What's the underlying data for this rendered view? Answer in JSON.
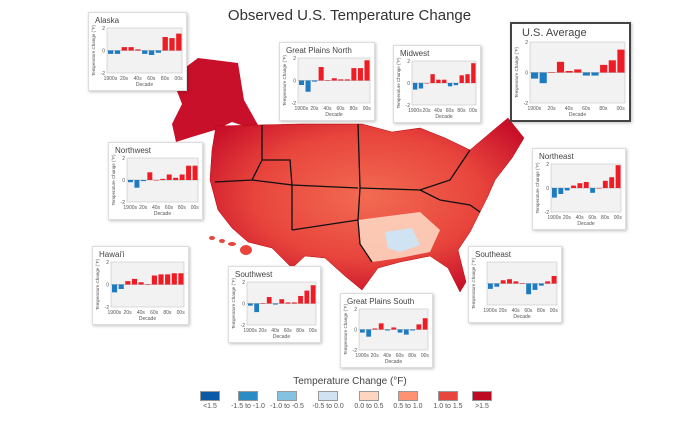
{
  "title": "Observed U.S. Temperature Change",
  "chart_data": {
    "type": "bar",
    "categories": [
      "1900s",
      "1910s",
      "1920s",
      "1930s",
      "1940s",
      "1950s",
      "1960s",
      "1970s",
      "1980s",
      "1990s",
      "2000s"
    ],
    "xtick_labels": [
      "1900s",
      "20s",
      "40s",
      "60s",
      "80s",
      "00s"
    ],
    "ylim": [
      -2,
      2
    ],
    "yticks": [
      "2",
      "0",
      "-2"
    ],
    "ylabel": "Temperature Change (°F)",
    "xlabel": "Decade",
    "grid": false,
    "positive_color": "#ee1c25",
    "negative_color": "#1f7bc1",
    "insets": [
      {
        "name": "Alaska",
        "values": [
          -0.3,
          -0.3,
          0.3,
          0.3,
          0.1,
          -0.3,
          -0.4,
          -0.2,
          1.2,
          1.1,
          1.5
        ]
      },
      {
        "name": "Great Plains North",
        "values": [
          -0.4,
          -1.0,
          -0.1,
          1.2,
          0.0,
          0.2,
          0.1,
          0.1,
          1.1,
          1.1,
          1.8
        ]
      },
      {
        "name": "Midwest",
        "values": [
          -0.6,
          -0.5,
          0.0,
          0.8,
          0.3,
          0.3,
          -0.3,
          -0.2,
          0.7,
          0.8,
          1.8
        ]
      },
      {
        "name": "U.S. Average",
        "values": [
          -0.4,
          -0.7,
          0.0,
          0.7,
          0.1,
          0.2,
          -0.2,
          -0.2,
          0.5,
          0.8,
          1.5
        ]
      },
      {
        "name": "Northwest",
        "values": [
          -0.2,
          -0.7,
          -0.1,
          0.7,
          0.0,
          0.1,
          0.5,
          0.2,
          0.5,
          1.3,
          1.3
        ]
      },
      {
        "name": "Northeast",
        "values": [
          -0.8,
          -0.5,
          -0.2,
          0.2,
          0.4,
          0.5,
          -0.4,
          0.0,
          0.6,
          0.9,
          1.9
        ]
      },
      {
        "name": "Hawai'i",
        "values": [
          -0.7,
          -0.4,
          0.3,
          0.5,
          0.2,
          0.0,
          0.8,
          0.9,
          0.9,
          1.0,
          1.0
        ]
      },
      {
        "name": "Southwest",
        "values": [
          -0.2,
          -0.8,
          0.0,
          0.6,
          -0.1,
          0.4,
          0.1,
          0.1,
          0.7,
          1.2,
          1.7
        ]
      },
      {
        "name": "Great Plains South",
        "values": [
          -0.3,
          -0.7,
          0.1,
          0.6,
          -0.1,
          0.2,
          -0.3,
          -0.5,
          -0.1,
          0.5,
          1.1
        ]
      },
      {
        "name": "Southeast",
        "values": [
          -0.5,
          -0.3,
          0.3,
          0.4,
          0.2,
          0.0,
          -1.0,
          -0.6,
          -0.2,
          0.2,
          0.7
        ],
        "ytick_labels_shown": false
      }
    ]
  },
  "legend": {
    "title": "Temperature Change (°F)",
    "items": [
      {
        "label": "<1.5",
        "color": "#0b5aa6"
      },
      {
        "label": "-1.5 to -1.0",
        "color": "#2b8cc4"
      },
      {
        "label": "-1.0 to -0.5",
        "color": "#85c1e0"
      },
      {
        "label": "-0.5 to 0.0",
        "color": "#cfe3f2"
      },
      {
        "label": "0.0 to 0.5",
        "color": "#fdd5c0"
      },
      {
        "label": "0.5 to 1.0",
        "color": "#fc9272"
      },
      {
        "label": "1.0 to 1.5",
        "color": "#e8453c"
      },
      {
        "label": ">1.5",
        "color": "#bd0b23"
      }
    ]
  }
}
